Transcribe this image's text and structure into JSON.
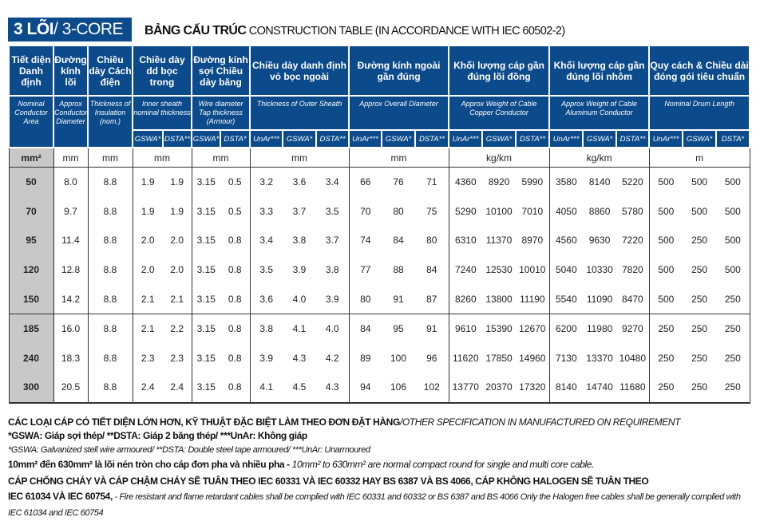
{
  "title": {
    "bold": "3 LÕI",
    "rest": "/ 3-CORE"
  },
  "subtitle": {
    "bold": "BẢNG CẤU TRÚC",
    "rest": "CONSTRUCTION TABLE (IN ACCORDANCE WITH IEC 60502-2)"
  },
  "headers": [
    {
      "vi": "Tiết diện Danh định",
      "en": "Nominal Conductor Area",
      "unit": "mm²"
    },
    {
      "vi": "Đường kính lõi",
      "en": "Approx Conductor Diameter",
      "unit": "mm"
    },
    {
      "vi": "Chiều dày Cách điện",
      "en": "Thickness of Insulation (nom.)",
      "unit": "mm"
    },
    {
      "vi": "Chiều dày dd bọc trong",
      "en": "Inner sheath nominal thickness",
      "unit": "mm",
      "subs": [
        "GSWA*",
        "DSTA**"
      ]
    },
    {
      "vi": "Đường kính sợi Chiều dày băng",
      "en": "Wire diameter Tap thickness (Armour)",
      "unit": "mm",
      "subs": [
        "GSWA*",
        "DSTA*"
      ]
    },
    {
      "vi": "Chiều dày danh định vỏ bọc ngoài",
      "en": "Thickness of Outer Sheath",
      "unit": "mm",
      "subs": [
        "UnAr***",
        "GSWA*",
        "DSTA**"
      ]
    },
    {
      "vi": "Đường kính ngoài gần đúng",
      "en": "Approx Overall Diameter",
      "unit": "mm",
      "subs": [
        "UnAr***",
        "GSWA*",
        "DSTA**"
      ]
    },
    {
      "vi": "Khối lượng cáp gần đúng lõi đồng",
      "en": "Approx Weight of Cable Copper Conductor",
      "unit": "kg/km",
      "subs": [
        "UnAr***",
        "GSWA*",
        "DSTA**"
      ]
    },
    {
      "vi": "Khối lượng cáp gần đúng lõi nhôm",
      "en": "Approx Weight of Cable Aluminum Conductor",
      "unit": "kg/km",
      "subs": [
        "UnAr***",
        "GSWA*",
        "DSTA**"
      ]
    },
    {
      "vi": "Quy cách & Chiều dài đóng gói tiêu chuẩn",
      "en": "Nominal Drum Length",
      "unit": "m",
      "subs": [
        "UnAr***",
        "GSWA*",
        "DSTA*"
      ]
    }
  ],
  "rows": [
    [
      "50",
      "8.0",
      "8.8",
      "1.9",
      "1.9",
      "3.15",
      "0.5",
      "3.2",
      "3.6",
      "3.4",
      "66",
      "76",
      "71",
      "4360",
      "8920",
      "5990",
      "3580",
      "8140",
      "5220",
      "500",
      "500",
      "500"
    ],
    [
      "70",
      "9.7",
      "8.8",
      "1.9",
      "1.9",
      "3.15",
      "0.5",
      "3.3",
      "3.7",
      "3.5",
      "70",
      "80",
      "75",
      "5290",
      "10100",
      "7010",
      "4050",
      "8860",
      "5780",
      "500",
      "500",
      "500"
    ],
    [
      "95",
      "11.4",
      "8.8",
      "2.0",
      "2.0",
      "3.15",
      "0.8",
      "3.4",
      "3.8",
      "3.7",
      "74",
      "84",
      "80",
      "6310",
      "11370",
      "8970",
      "4560",
      "9630",
      "7220",
      "500",
      "250",
      "500"
    ],
    [
      "120",
      "12.8",
      "8.8",
      "2.0",
      "2.0",
      "3.15",
      "0.8",
      "3.5",
      "3.9",
      "3.8",
      "77",
      "88",
      "84",
      "7240",
      "12530",
      "10010",
      "5040",
      "10330",
      "7820",
      "500",
      "250",
      "500"
    ],
    [
      "150",
      "14.2",
      "8.8",
      "2.1",
      "2.1",
      "3.15",
      "0.8",
      "3.6",
      "4.0",
      "3.9",
      "80",
      "91",
      "87",
      "8260",
      "13800",
      "11190",
      "5540",
      "11090",
      "8470",
      "500",
      "250",
      "250"
    ],
    [
      "185",
      "16.0",
      "8.8",
      "2.1",
      "2.2",
      "3.15",
      "0.8",
      "3.8",
      "4.1",
      "4.0",
      "84",
      "95",
      "91",
      "9610",
      "15390",
      "12670",
      "6200",
      "11980",
      "9270",
      "250",
      "250",
      "250"
    ],
    [
      "240",
      "18.3",
      "8.8",
      "2.3",
      "2.3",
      "3.15",
      "0.8",
      "3.9",
      "4.3",
      "4.2",
      "89",
      "100",
      "96",
      "11620",
      "17850",
      "14960",
      "7130",
      "13370",
      "10480",
      "250",
      "250",
      "250"
    ],
    [
      "300",
      "20.5",
      "8.8",
      "2.4",
      "2.4",
      "3.15",
      "0.8",
      "4.1",
      "4.5",
      "4.3",
      "94",
      "106",
      "102",
      "13770",
      "20370",
      "17320",
      "8140",
      "14740",
      "11680",
      "250",
      "250",
      "250"
    ]
  ],
  "notes": {
    "line1_bold": "CÁC LOẠI CÁP CÓ TIẾT DIỆN LỚN HƠN, KỸ THUẬT ĐẶC BIỆT LÀM THEO ĐƠN ĐẶT HÀNG",
    "line1_italic": "/OTHER SPECIFICATION IN MANUFACTURED ON REQUIREMENT",
    "line2": "*GSWA: Giáp sợi thép/ **DSTA: Giáp 2 băng thép/ ***UnAr: Không giáp",
    "line3": "*GSWA: Galvanized stell wire armoured/ **DSTA: Double steel tape armoured/ ***UnAr: Unarmoured",
    "line4_bold": "10mm² đến 630mm² là lõi nén tròn cho cáp đơn pha và nhiều pha - ",
    "line4_italic": "10mm² to 630mm² are normal compact round for single and multi core cable.",
    "line5": "CÁP CHỐNG CHÁY VÀ CÁP CHẬM CHÁY SẼ TUÂN THEO IEC 60331 VÀ IEC 60332 HAY BS 6387 VÀ BS 4066, CÁP KHÔNG HALOGEN SẼ TUÂN THEO",
    "line6_bold": "IEC 61034 VÀ IEC 60754,",
    "line6_italic": "  - Fire resistant and flame retardant cables shall be complied with IEC 60331 and 60332 or BS 6387 and BS 4066 Only the Halogen free cables shall be generally complied with IEC 61034 and IEC 60754"
  }
}
